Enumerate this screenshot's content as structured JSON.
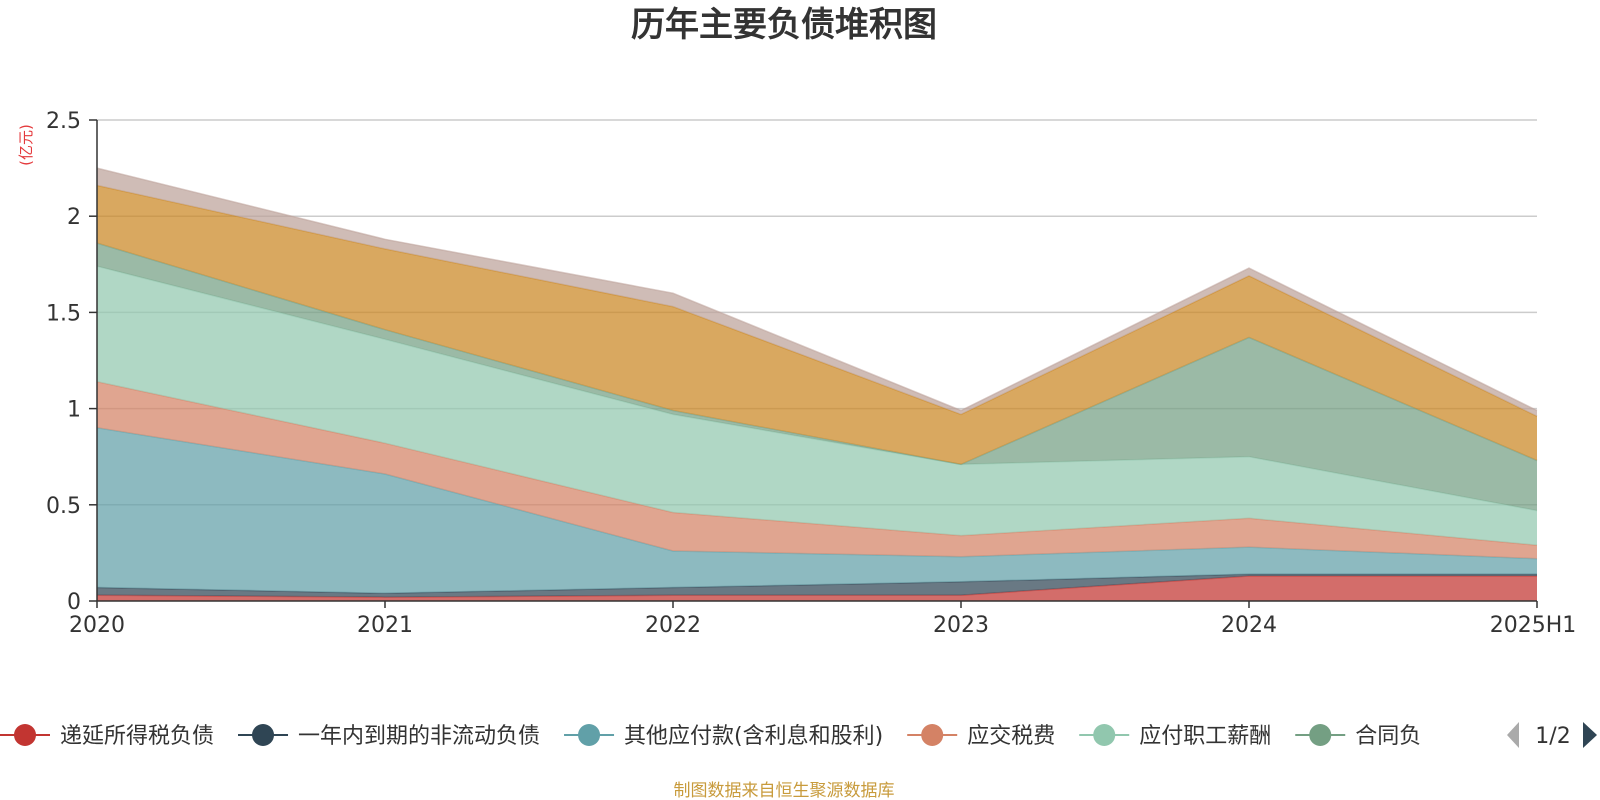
{
  "chart_data": {
    "type": "area",
    "stacked": true,
    "title": "历年主要负债堆积图",
    "unit": "(亿元)",
    "source": "制图数据来自恒生聚源数据库",
    "categories": [
      "2020",
      "2021",
      "2022",
      "2023",
      "2024",
      "2025H1"
    ],
    "ylim": [
      0,
      2.5
    ],
    "yticks": [
      "0",
      "0.5",
      "1",
      "1.5",
      "2",
      "2.5"
    ],
    "grid": true,
    "legend_position": "bottom",
    "legend_page": "1/2",
    "legend_partial_label": "合同负",
    "series": [
      {
        "name": "递延所得税负债",
        "color": "#c23531",
        "values": [
          0.03,
          0.02,
          0.03,
          0.03,
          0.13,
          0.13
        ]
      },
      {
        "name": "一年内到期的非流动负债",
        "color": "#2f4554",
        "values": [
          0.04,
          0.02,
          0.04,
          0.07,
          0.01,
          0.01
        ]
      },
      {
        "name": "其他应付款(含利息和股利)",
        "color": "#61a0a8",
        "values": [
          0.83,
          0.62,
          0.19,
          0.13,
          0.14,
          0.08
        ]
      },
      {
        "name": "应交税费",
        "color": "#d48265",
        "values": [
          0.24,
          0.16,
          0.2,
          0.11,
          0.15,
          0.07
        ]
      },
      {
        "name": "应付职工薪酬",
        "color": "#91c7ae",
        "values": [
          0.6,
          0.54,
          0.51,
          0.37,
          0.32,
          0.18
        ]
      },
      {
        "color": "#749f83",
        "values": [
          0.12,
          0.05,
          0.02,
          0.0,
          0.62,
          0.26
        ]
      },
      {
        "color": "#ca8622",
        "values": [
          0.3,
          0.42,
          0.54,
          0.26,
          0.32,
          0.23
        ]
      },
      {
        "color": "#bda29a",
        "values": [
          0.09,
          0.05,
          0.07,
          0.02,
          0.04,
          0.03
        ]
      }
    ],
    "colors": {
      "unit": "#e4393c",
      "source": "#c89b3c",
      "axis": "#333333",
      "grid": "#cccccc",
      "pager_inactive": "#aaaaaa",
      "pager_active": "#2f4554"
    }
  }
}
